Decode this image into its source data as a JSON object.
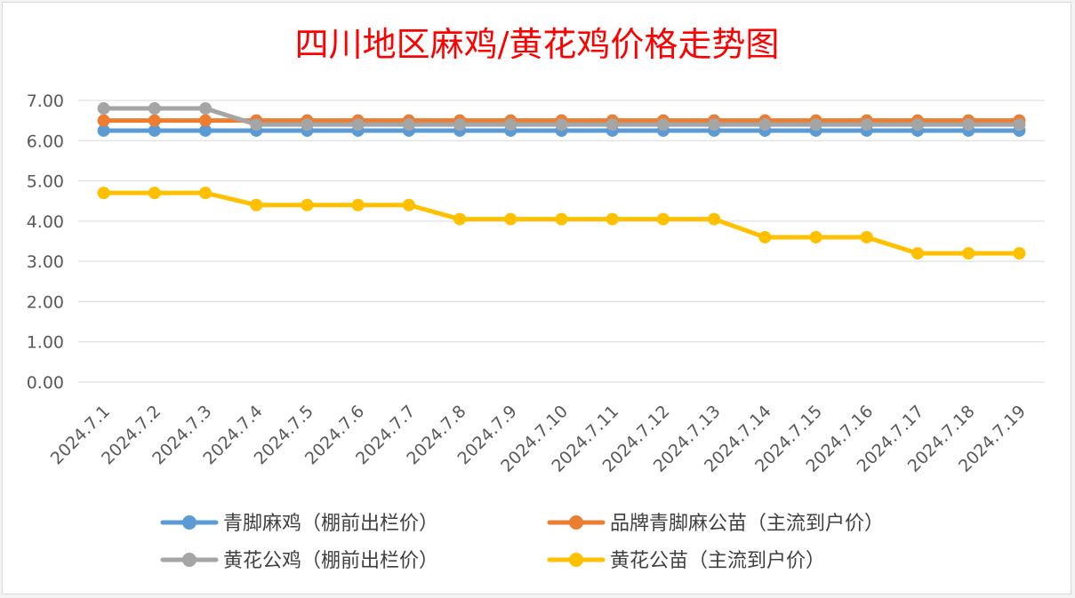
{
  "chart_data": {
    "type": "line",
    "title": "四川地区麻鸡/黄花鸡价格走势图",
    "xlabel": "",
    "ylabel": "",
    "ylim": [
      0,
      7
    ],
    "yticks": [
      "0.00",
      "1.00",
      "2.00",
      "3.00",
      "4.00",
      "5.00",
      "6.00",
      "7.00"
    ],
    "grid": true,
    "legend_position": "bottom",
    "categories": [
      "2024.7.1",
      "2024.7.2",
      "2024.7.3",
      "2024.7.4",
      "2024.7.5",
      "2024.7.6",
      "2024.7.7",
      "2024.7.8",
      "2024.7.9",
      "2024.7.10",
      "2024.7.11",
      "2024.7.12",
      "2024.7.13",
      "2024.7.14",
      "2024.7.15",
      "2024.7.16",
      "2024.7.17",
      "2024.7.18",
      "2024.7.19"
    ],
    "series": [
      {
        "name": "青脚麻鸡（棚前出栏价）",
        "color": "#5b9bd5",
        "values": [
          6.25,
          6.25,
          6.25,
          6.25,
          6.25,
          6.25,
          6.25,
          6.25,
          6.25,
          6.25,
          6.25,
          6.25,
          6.25,
          6.25,
          6.25,
          6.25,
          6.25,
          6.25,
          6.25
        ]
      },
      {
        "name": "品牌青脚麻公苗（主流到户价）",
        "color": "#ed7d31",
        "values": [
          6.5,
          6.5,
          6.5,
          6.5,
          6.5,
          6.5,
          6.5,
          6.5,
          6.5,
          6.5,
          6.5,
          6.5,
          6.5,
          6.5,
          6.5,
          6.5,
          6.5,
          6.5,
          6.5
        ]
      },
      {
        "name": "黄花公鸡（棚前出栏价）",
        "color": "#a5a5a5",
        "values": [
          6.8,
          6.8,
          6.8,
          6.4,
          6.4,
          6.4,
          6.4,
          6.4,
          6.4,
          6.4,
          6.4,
          6.4,
          6.4,
          6.4,
          6.4,
          6.4,
          6.4,
          6.4,
          6.4
        ]
      },
      {
        "name": "黄花公苗（主流到户价）",
        "color": "#ffc000",
        "values": [
          4.7,
          4.7,
          4.7,
          4.4,
          4.4,
          4.4,
          4.4,
          4.05,
          4.05,
          4.05,
          4.05,
          4.05,
          4.05,
          3.6,
          3.6,
          3.6,
          3.2,
          3.2,
          3.2
        ]
      }
    ]
  }
}
